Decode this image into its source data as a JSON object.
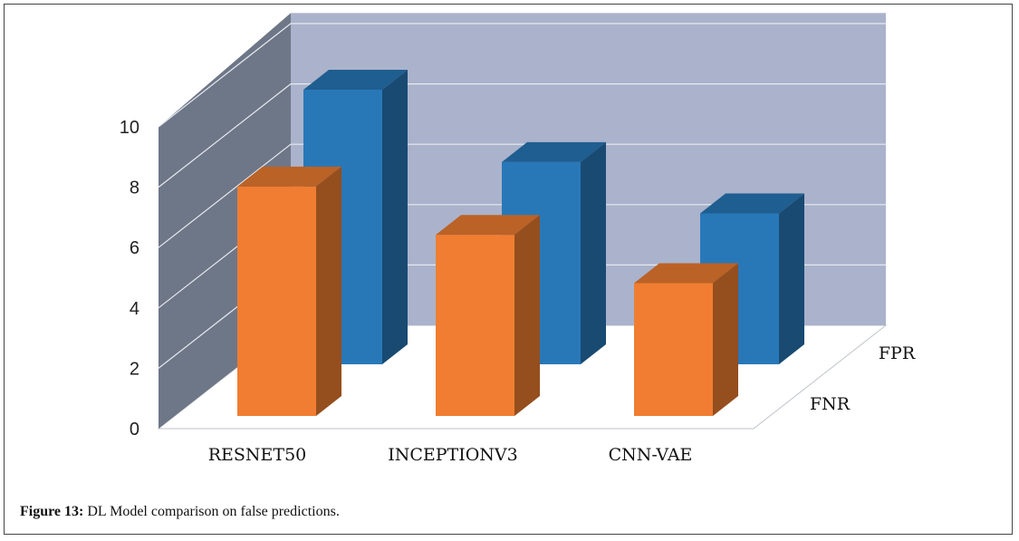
{
  "figure": {
    "label": "Figure 13:",
    "caption": "DL Model comparison on false predictions."
  },
  "chart_data": {
    "type": "bar",
    "style": "3d-clustered",
    "categories": [
      "RESNET50",
      "INCEPTIONV3",
      "CNN-VAE"
    ],
    "series": [
      {
        "name": "FNR",
        "values": [
          7.6,
          6.0,
          4.4
        ],
        "color": "#f07d31"
      },
      {
        "name": "FPR",
        "values": [
          9.1,
          6.7,
          5.0
        ],
        "color": "#2878b8"
      }
    ],
    "yticks": [
      "0",
      "2",
      "4",
      "6",
      "8",
      "10"
    ],
    "ylim": [
      0,
      10
    ],
    "grid": true,
    "title": "",
    "xlabel": "",
    "ylabel": ""
  }
}
